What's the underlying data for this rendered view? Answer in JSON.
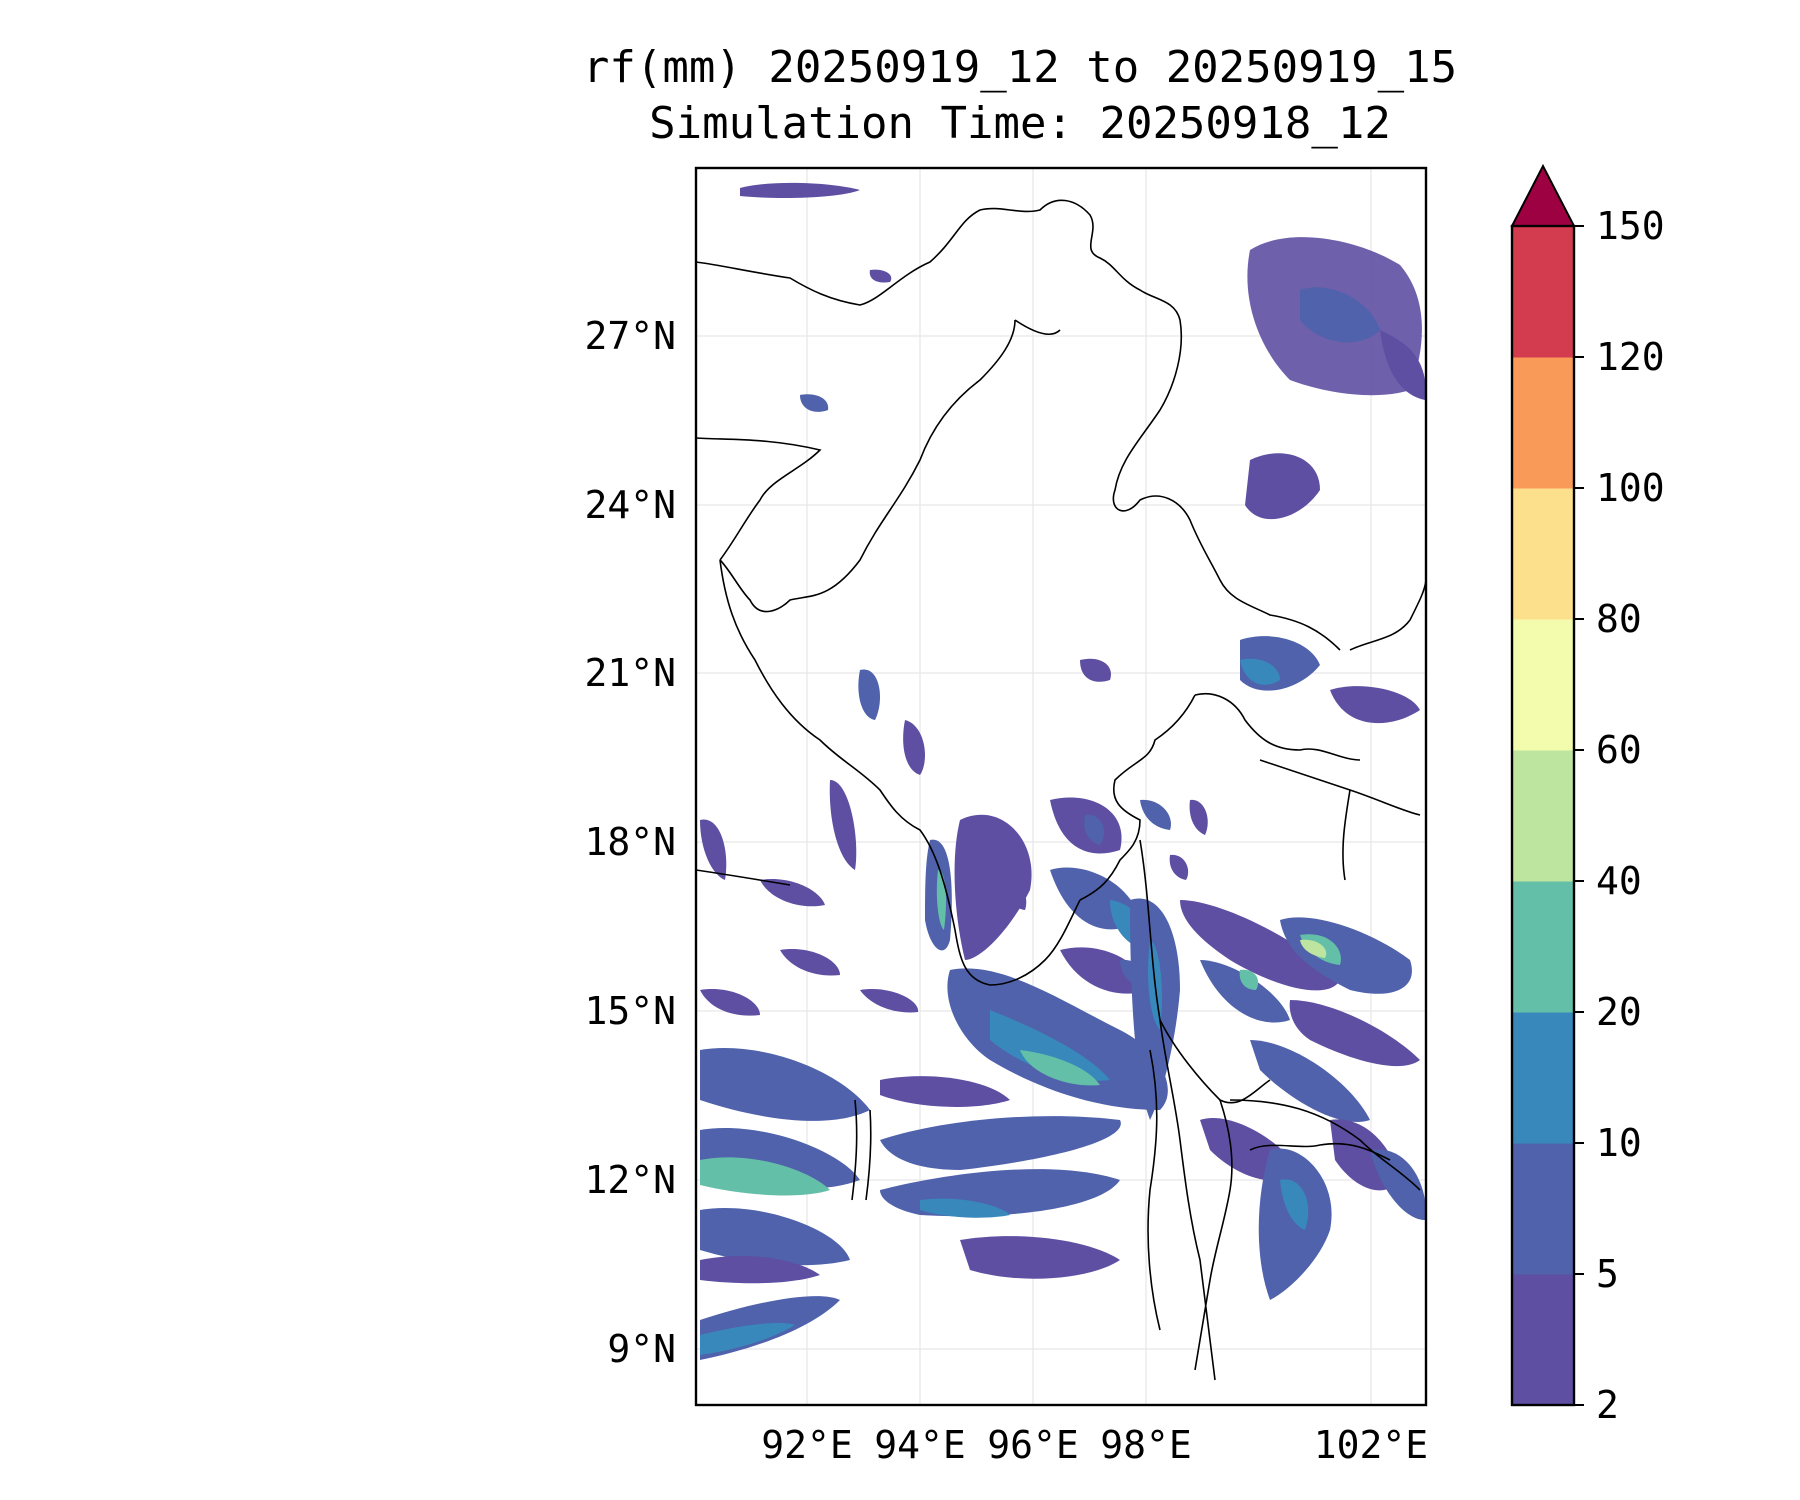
{
  "title_line1": "rf(mm) 20250919_12 to 20250919_15",
  "title_line2": "Simulation Time: 20250918_12",
  "map": {
    "lat_ticks": [
      "27°N",
      "24°N",
      "21°N",
      "18°N",
      "15°N",
      "12°N",
      "9°N"
    ],
    "lon_ticks": [
      "92°E",
      "94°E",
      "96°E",
      "98°E",
      "102°E"
    ],
    "gridlines": true
  },
  "colorbar": {
    "levels": [
      "2",
      "5",
      "10",
      "20",
      "40",
      "60",
      "80",
      "100",
      "120",
      "150"
    ],
    "colors": [
      "#5e4fa2",
      "#4f62ab",
      "#3988bc",
      "#64bfa9",
      "#bde5a0",
      "#f3fbad",
      "#fde08c",
      "#fa9a58",
      "#d33c4f",
      "#9e0142"
    ],
    "extend": "max"
  }
}
